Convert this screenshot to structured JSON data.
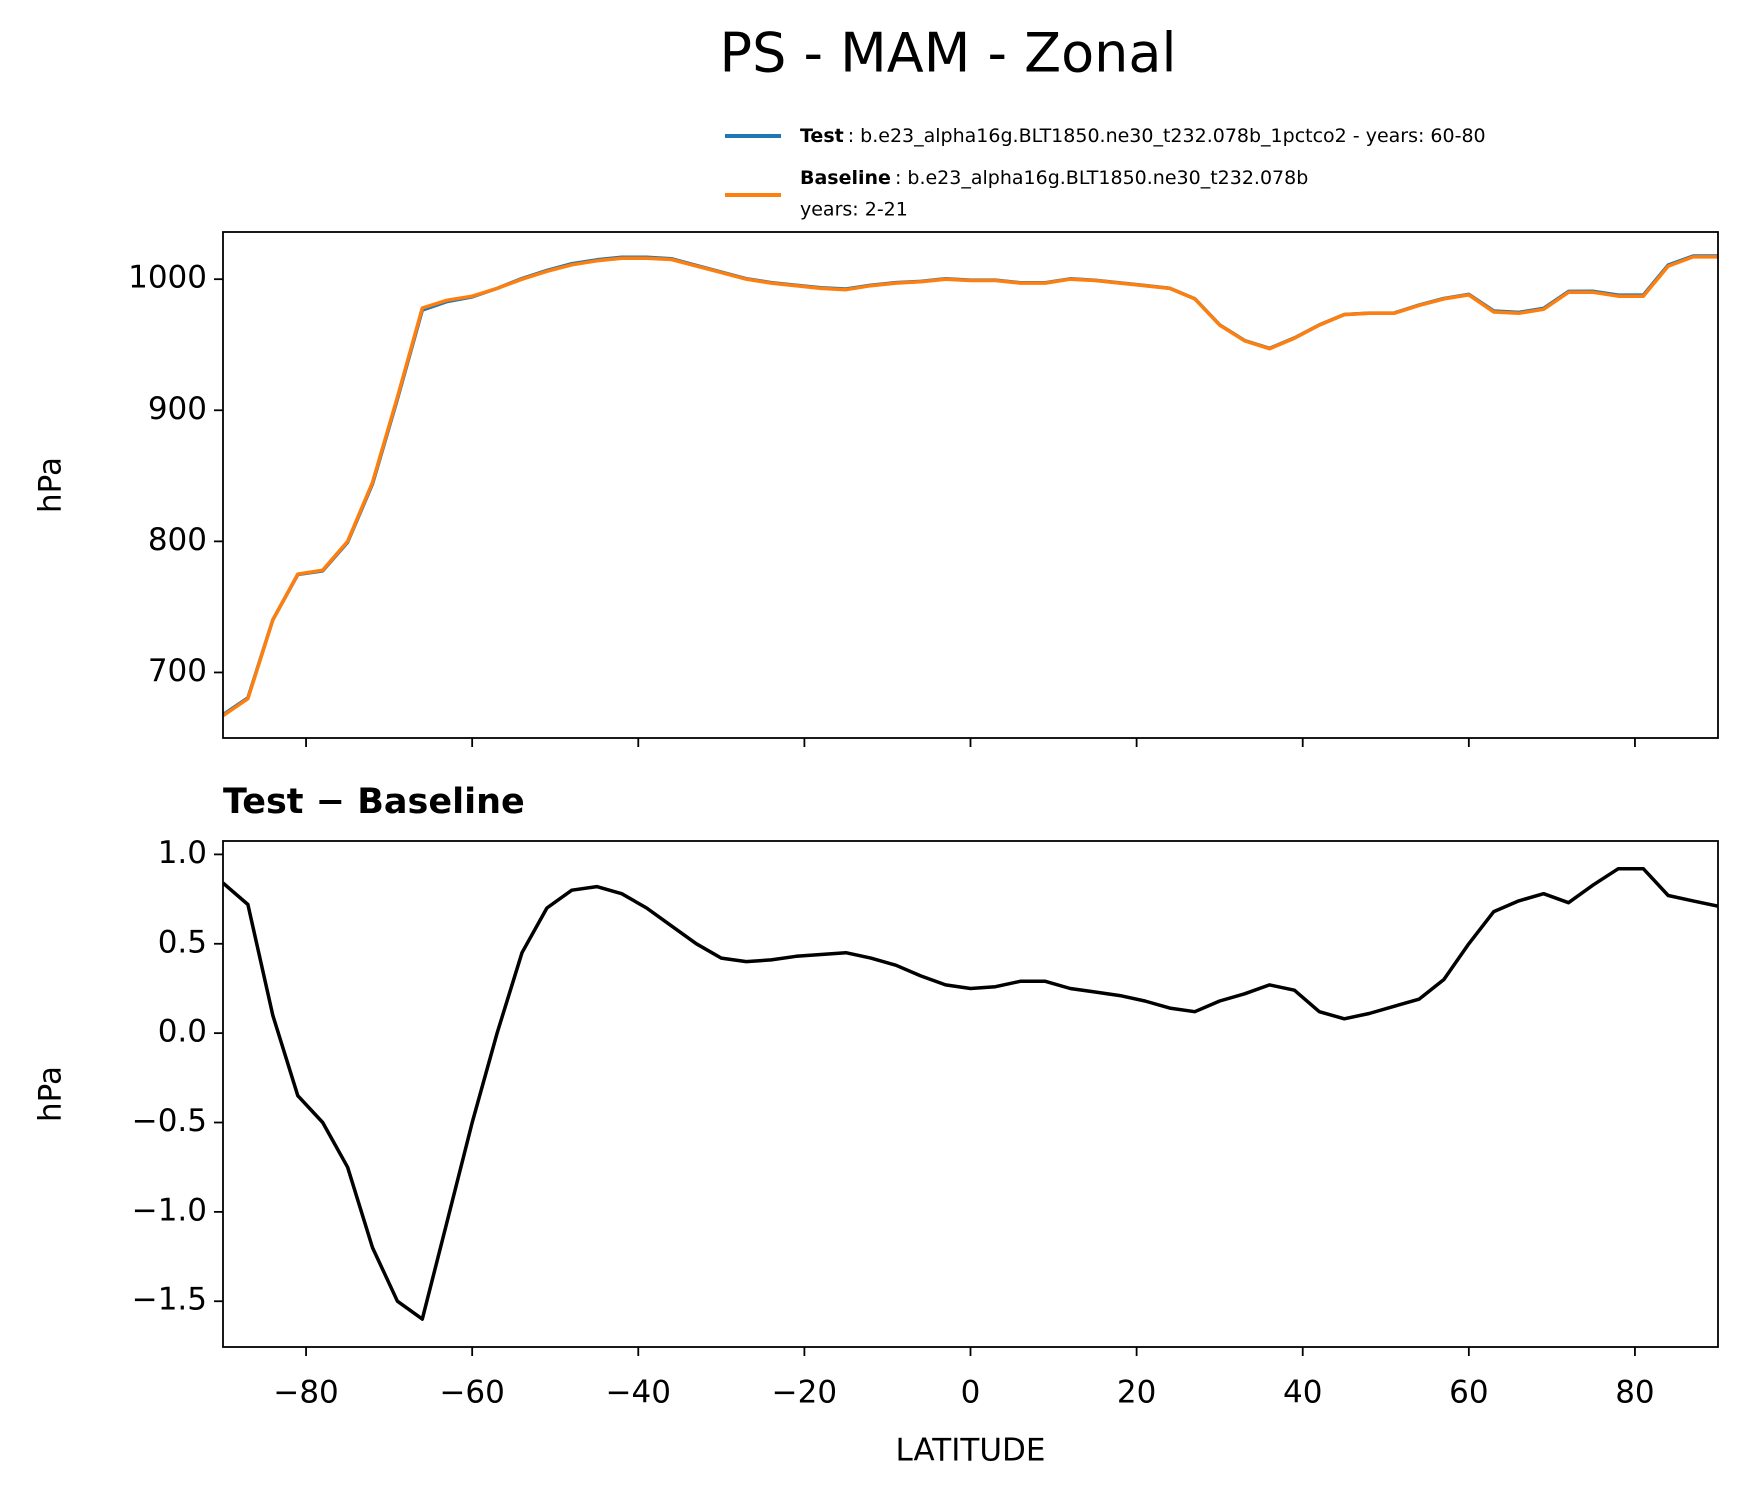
{
  "title": "PS - MAM - Zonal",
  "chart_data": [
    {
      "type": "line",
      "x": [
        -90,
        -87,
        -84,
        -81,
        -78,
        -75,
        -72,
        -69,
        -66,
        -63,
        -60,
        -57,
        -54,
        -51,
        -48,
        -45,
        -42,
        -39,
        -36,
        -33,
        -30,
        -27,
        -24,
        -21,
        -18,
        -15,
        -12,
        -9,
        -6,
        -3,
        0,
        3,
        6,
        9,
        12,
        15,
        18,
        21,
        24,
        27,
        30,
        33,
        36,
        39,
        42,
        45,
        48,
        51,
        54,
        57,
        60,
        63,
        66,
        69,
        72,
        75,
        78,
        81,
        84,
        87,
        90
      ],
      "series": [
        {
          "name": "Test",
          "label_lines": [
            ": b.e23_alpha16g.BLT1850.ne30_t232.078b_1pctco2 - years: 60-80"
          ],
          "color": "#1f77b4",
          "values": [
            667.8,
            680.7,
            740.1,
            774.7,
            777.5,
            799.3,
            843.8,
            908.5,
            976.4,
            983.0,
            986.5,
            993.0,
            1000.5,
            1006.7,
            1011.8,
            1014.8,
            1016.8,
            1016.7,
            1015.6,
            1010.5,
            1005.4,
            1000.4,
            997.4,
            995.4,
            993.4,
            992.5,
            995.4,
            997.4,
            998.3,
            1000.3,
            999.3,
            999.3,
            997.3,
            997.3,
            1000.3,
            999.2,
            997.2,
            995.2,
            993.1,
            985.1,
            965.2,
            953.2,
            947.3,
            955.2,
            965.1,
            973.1,
            974.1,
            974.2,
            980.2,
            985.3,
            988.5,
            975.7,
            974.7,
            977.8,
            990.7,
            990.8,
            987.9,
            987.9,
            1010.8,
            1017.7,
            1017.7
          ]
        },
        {
          "name": "Baseline",
          "label_lines": [
            ": b.e23_alpha16g.BLT1850.ne30_t232.078b",
            "years: 2-21"
          ],
          "color": "#ff7f0e",
          "values": [
            667,
            680,
            740,
            775,
            778,
            800,
            845,
            910,
            978,
            984,
            987,
            993,
            1000,
            1006,
            1011,
            1014,
            1016,
            1016,
            1015,
            1010,
            1005,
            1000,
            997,
            995,
            993,
            992,
            995,
            997,
            998,
            1000,
            999,
            999,
            997,
            997,
            1000,
            999,
            997,
            995,
            993,
            985,
            965,
            953,
            947,
            955,
            965,
            973,
            974,
            974,
            980,
            985,
            988,
            975,
            974,
            977,
            990,
            990,
            987,
            987,
            1010,
            1017,
            1017
          ]
        }
      ],
      "ylabel": "hPa",
      "xlim": [
        -90,
        90
      ],
      "xticks": [
        -80,
        -60,
        -40,
        -20,
        0,
        20,
        40,
        60,
        80
      ],
      "ylim": [
        650,
        1036
      ],
      "yticks": [
        700,
        800,
        900,
        1000
      ]
    },
    {
      "type": "line",
      "title": "Test − Baseline",
      "x": [
        -90,
        -87,
        -84,
        -81,
        -78,
        -75,
        -72,
        -69,
        -66,
        -63,
        -60,
        -57,
        -54,
        -51,
        -48,
        -45,
        -42,
        -39,
        -36,
        -33,
        -30,
        -27,
        -24,
        -21,
        -18,
        -15,
        -12,
        -9,
        -6,
        -3,
        0,
        3,
        6,
        9,
        12,
        15,
        18,
        21,
        24,
        27,
        30,
        33,
        36,
        39,
        42,
        45,
        48,
        51,
        54,
        57,
        60,
        63,
        66,
        69,
        72,
        75,
        78,
        81,
        84,
        87,
        90
      ],
      "values": [
        0.84,
        0.72,
        0.1,
        -0.35,
        -0.5,
        -0.75,
        -1.2,
        -1.5,
        -1.6,
        -1.05,
        -0.5,
        0.0,
        0.45,
        0.7,
        0.8,
        0.82,
        0.78,
        0.7,
        0.6,
        0.5,
        0.42,
        0.4,
        0.41,
        0.43,
        0.44,
        0.45,
        0.42,
        0.38,
        0.32,
        0.27,
        0.25,
        0.26,
        0.29,
        0.29,
        0.25,
        0.23,
        0.21,
        0.18,
        0.14,
        0.12,
        0.18,
        0.22,
        0.27,
        0.24,
        0.12,
        0.08,
        0.11,
        0.15,
        0.19,
        0.3,
        0.5,
        0.68,
        0.74,
        0.78,
        0.73,
        0.83,
        0.92,
        0.92,
        0.77,
        0.74,
        0.71
      ],
      "color": "#000000",
      "xlabel": "LATITUDE",
      "ylabel": "hPa",
      "xlim": [
        -90,
        90
      ],
      "xticks": [
        {
          "value": -80,
          "label": "−80"
        },
        {
          "value": -60,
          "label": "−60"
        },
        {
          "value": -40,
          "label": "−40"
        },
        {
          "value": -20,
          "label": "−20"
        },
        0,
        20,
        40,
        60,
        80
      ],
      "ylim": [
        -1.756,
        1.075
      ],
      "yticks": [
        {
          "value": -1.5,
          "label": "−1.5"
        },
        {
          "value": -1,
          "label": "−1.0"
        },
        {
          "value": -0.5,
          "label": "−0.5"
        },
        {
          "value": 0,
          "label": "0.0"
        },
        0.5,
        {
          "value": 1,
          "label": "1.0"
        }
      ]
    }
  ]
}
